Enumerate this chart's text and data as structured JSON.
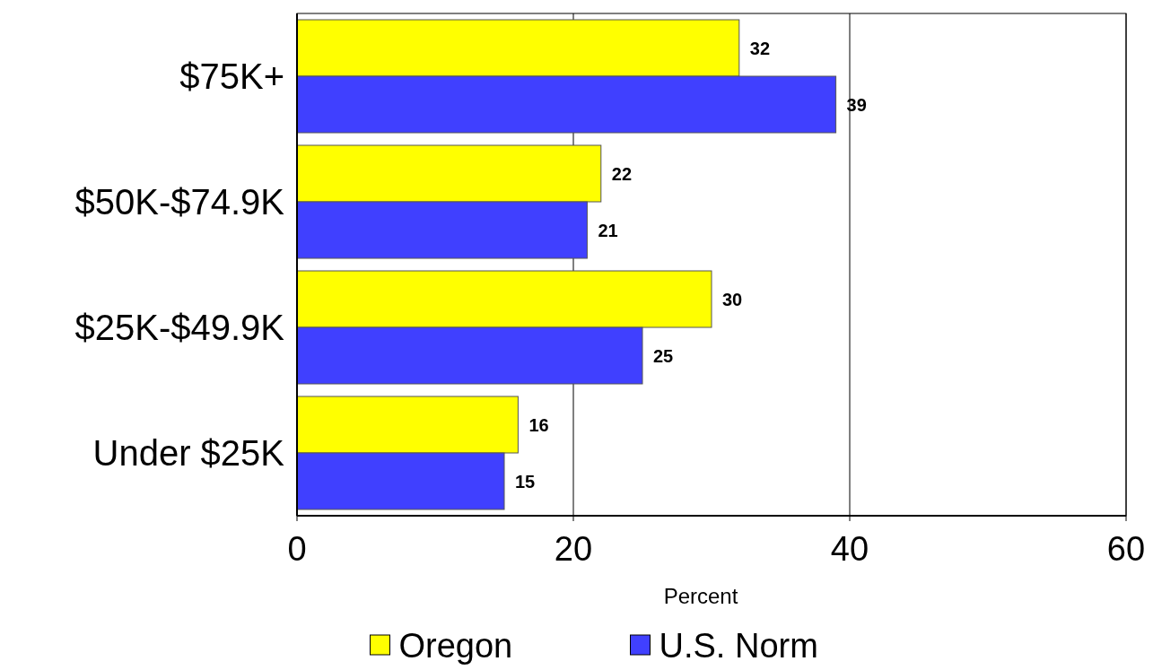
{
  "chart_data": {
    "type": "bar",
    "orientation": "horizontal",
    "categories": [
      "$75K+",
      "$50K-$74.9K",
      "$25K-$49.9K",
      "Under $25K"
    ],
    "series": [
      {
        "name": "Oregon",
        "color": "#ffff00",
        "values": [
          32,
          22,
          30,
          16
        ]
      },
      {
        "name": "U.S. Norm",
        "color": "#4040ff",
        "values": [
          39,
          21,
          25,
          15
        ]
      }
    ],
    "xlim": [
      0,
      60
    ],
    "xticks": [
      0,
      20,
      40,
      60
    ],
    "xlabel": "Percent",
    "grid": "x",
    "legend": "bottom",
    "data_labels": true
  }
}
